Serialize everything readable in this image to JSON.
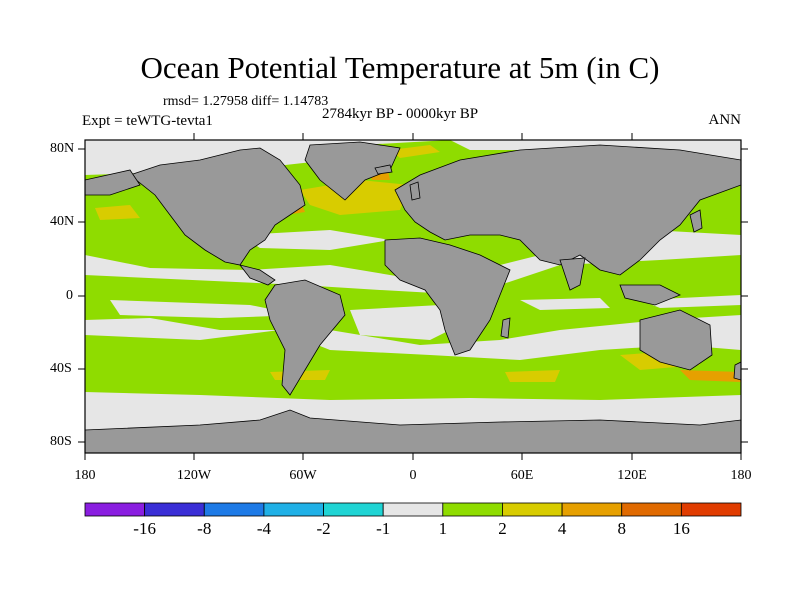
{
  "title": "Ocean Potential Temperature at 5m (in C)",
  "stats": "rmsd= 1.27958 diff= 1.14783",
  "period": "2784kyr BP - 0000kyr BP",
  "experiment": "Expt = teWTG-tevta1",
  "season": "ANN",
  "lat_labels": [
    "80N",
    "40N",
    "0",
    "40S",
    "80S"
  ],
  "lon_labels": [
    "180",
    "120W",
    "60W",
    "0",
    "60E",
    "120E",
    "180"
  ],
  "colorbar": {
    "colors": [
      "#8a1ee0",
      "#3a2ed6",
      "#1e7ae6",
      "#20b0e6",
      "#20d4d4",
      "#e6e6e6",
      "#8fdc00",
      "#d8cc00",
      "#e6a000",
      "#e06a00",
      "#e03c00"
    ],
    "labels": [
      "-16",
      "-8",
      "-4",
      "-2",
      "-1",
      "1",
      "2",
      "4",
      "8",
      "16"
    ]
  },
  "legend_colors": {
    "land": "#999999",
    "ocean_neutral": "#e6e6e6",
    "ocean_warm_1_2": "#8fdc00",
    "ocean_warm_2_4": "#d8cc00",
    "ocean_warm_4_8": "#e6a000"
  }
}
